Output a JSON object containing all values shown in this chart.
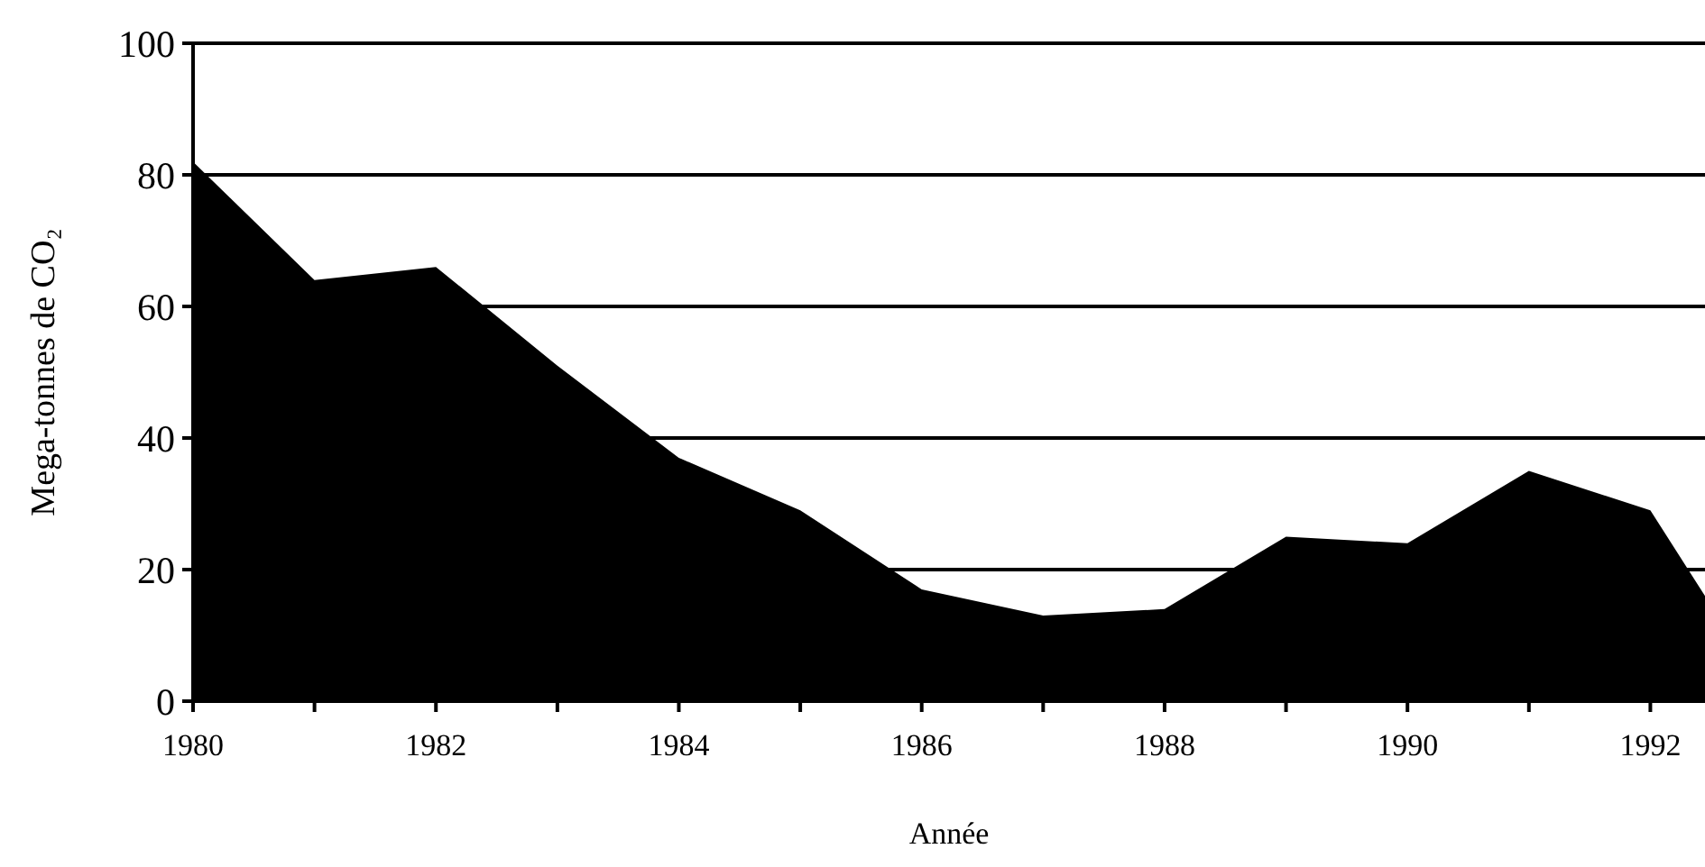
{
  "chart_data": {
    "type": "area",
    "xlabel": "Année",
    "ylabel": "Mega-tonnes de CO₂",
    "x": [
      1980,
      1981,
      1982,
      1983,
      1984,
      1985,
      1986,
      1987,
      1988,
      1989,
      1990,
      1991,
      1992,
      1992.45
    ],
    "series": [
      {
        "color": "#000000",
        "values": [
          82,
          64,
          66,
          51,
          37,
          29,
          17,
          13,
          14,
          25,
          24,
          35,
          29,
          16
        ]
      }
    ],
    "xlim": [
      1980,
      1992.45
    ],
    "xticks": [
      1980,
      1982,
      1984,
      1986,
      1988,
      1990,
      1992
    ],
    "ylim": [
      0,
      100
    ],
    "yticks": [
      0,
      20,
      40,
      60,
      80,
      100
    ],
    "grid": "y"
  }
}
